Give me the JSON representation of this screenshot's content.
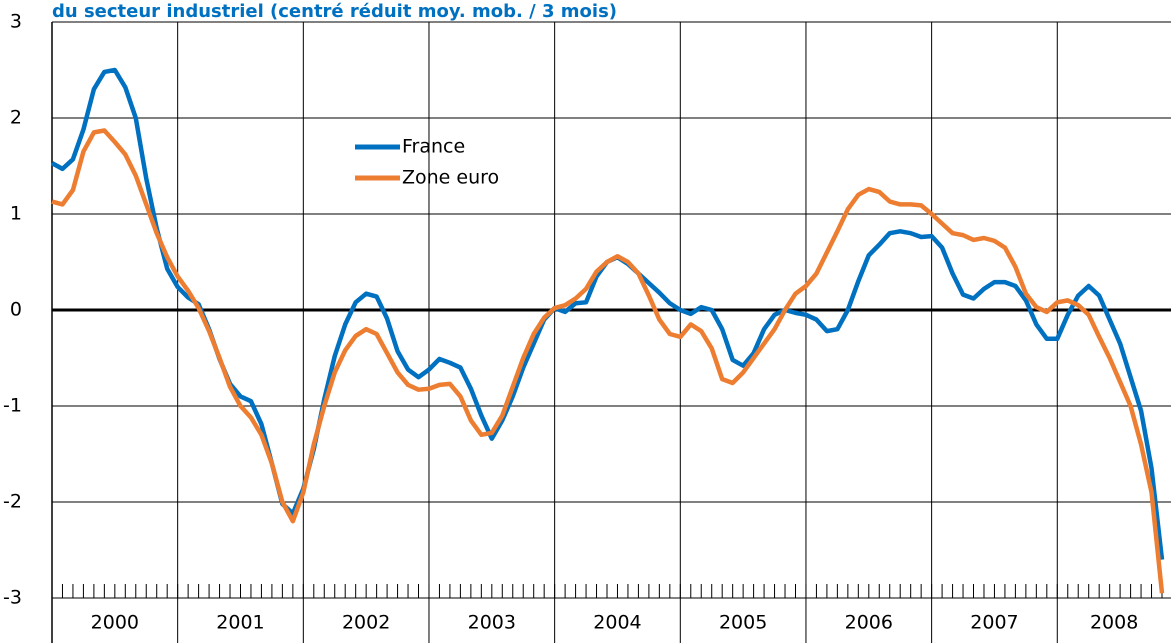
{
  "chart_data": {
    "type": "line",
    "title": "du secteur industriel (centré réduit moy. mob. / 3 mois)",
    "categories": [
      "2000",
      null,
      null,
      null,
      null,
      null,
      null,
      null,
      null,
      null,
      null,
      null,
      "2001",
      null,
      null,
      null,
      null,
      null,
      null,
      null,
      null,
      null,
      null,
      null,
      "2002",
      null,
      null,
      null,
      null,
      null,
      null,
      null,
      null,
      null,
      null,
      null,
      "2003",
      null,
      null,
      null,
      null,
      null,
      null,
      null,
      null,
      null,
      null,
      null,
      "2004",
      null,
      null,
      null,
      null,
      null,
      null,
      null,
      null,
      null,
      null,
      null,
      "2005",
      null,
      null,
      null,
      null,
      null,
      null,
      null,
      null,
      null,
      null,
      null,
      "2006",
      null,
      null,
      null,
      null,
      null,
      null,
      null,
      null,
      null,
      null,
      null,
      "2007",
      null,
      null,
      null,
      null,
      null,
      null,
      null,
      null,
      null,
      null,
      null,
      "2008",
      null,
      null,
      null,
      null,
      null,
      null,
      null,
      null,
      null,
      null
    ],
    "series": [
      {
        "name": "France",
        "color": "#0070c0",
        "values": [
          1.53,
          1.47,
          1.57,
          1.88,
          2.3,
          2.48,
          2.5,
          2.32,
          2.0,
          1.37,
          0.85,
          0.43,
          0.24,
          0.13,
          0.06,
          -0.2,
          -0.51,
          -0.77,
          -0.9,
          -0.95,
          -1.19,
          -1.6,
          -2.02,
          -2.12,
          -1.86,
          -1.45,
          -0.93,
          -0.48,
          -0.15,
          0.08,
          0.17,
          0.14,
          -0.09,
          -0.43,
          -0.62,
          -0.7,
          -0.62,
          -0.51,
          -0.55,
          -0.6,
          -0.82,
          -1.1,
          -1.34,
          -1.15,
          -0.9,
          -0.6,
          -0.35,
          -0.1,
          0.02,
          -0.02,
          0.07,
          0.08,
          0.35,
          0.5,
          0.55,
          0.48,
          0.38,
          0.28,
          0.18,
          0.07,
          0.0,
          -0.04,
          0.03,
          0.0,
          -0.2,
          -0.52,
          -0.58,
          -0.45,
          -0.2,
          -0.05,
          0.0,
          -0.03,
          -0.05,
          -0.1,
          -0.22,
          -0.2,
          0.0,
          0.3,
          0.57,
          0.68,
          0.8,
          0.82,
          0.8,
          0.76,
          0.77,
          0.65,
          0.38,
          0.16,
          0.12,
          0.22,
          0.29,
          0.29,
          0.25,
          0.1,
          -0.15,
          -0.3,
          -0.3,
          -0.05,
          0.15,
          0.25,
          0.15,
          -0.1,
          -0.35,
          -0.7,
          -1.05,
          -1.65,
          -2.6
        ]
      },
      {
        "name": "Zone euro",
        "color": "#ed7d31",
        "values": [
          1.13,
          1.1,
          1.25,
          1.65,
          1.85,
          1.87,
          1.75,
          1.62,
          1.4,
          1.1,
          0.8,
          0.55,
          0.35,
          0.2,
          0.02,
          -0.22,
          -0.5,
          -0.8,
          -1.0,
          -1.12,
          -1.3,
          -1.6,
          -2.0,
          -2.2,
          -1.9,
          -1.4,
          -1.0,
          -0.65,
          -0.42,
          -0.27,
          -0.2,
          -0.25,
          -0.45,
          -0.65,
          -0.78,
          -0.83,
          -0.82,
          -0.78,
          -0.77,
          -0.9,
          -1.15,
          -1.3,
          -1.28,
          -1.1,
          -0.8,
          -0.5,
          -0.25,
          -0.08,
          0.02,
          0.05,
          0.12,
          0.22,
          0.4,
          0.5,
          0.56,
          0.5,
          0.38,
          0.15,
          -0.1,
          -0.25,
          -0.28,
          -0.15,
          -0.22,
          -0.4,
          -0.72,
          -0.76,
          -0.65,
          -0.5,
          -0.35,
          -0.2,
          0.0,
          0.17,
          0.25,
          0.38,
          0.6,
          0.82,
          1.05,
          1.2,
          1.26,
          1.23,
          1.13,
          1.1,
          1.1,
          1.09,
          1.0,
          0.9,
          0.8,
          0.78,
          0.73,
          0.75,
          0.72,
          0.65,
          0.45,
          0.17,
          0.03,
          -0.02,
          0.08,
          0.1,
          0.05,
          -0.05,
          -0.28,
          -0.5,
          -0.75,
          -1.0,
          -1.4,
          -1.9,
          -2.95
        ]
      }
    ],
    "ylim": [
      -3,
      3
    ],
    "yticks": [
      -3,
      -2,
      -1,
      0,
      1,
      2,
      3
    ],
    "grid": true,
    "legend": "upper left"
  }
}
